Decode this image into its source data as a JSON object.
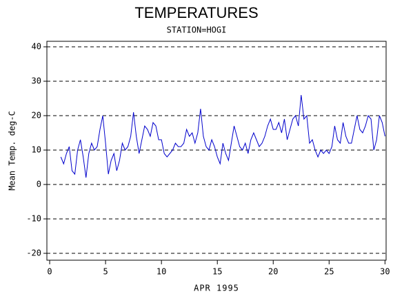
{
  "chart_data": {
    "type": "line",
    "title": "TEMPERATURES",
    "subtitle": "STATION=HOGI",
    "x_label": "APR 1995",
    "y_label": "Mean Temp. deg-C",
    "xlim": [
      -0.25,
      30.1
    ],
    "xticks": [
      0,
      5,
      10,
      15,
      20,
      25,
      30
    ],
    "ylim": [
      -22,
      41.6
    ],
    "yticks": [
      -20,
      -10,
      0,
      10,
      20,
      30,
      40
    ],
    "grid": true,
    "series": [
      {
        "color": "#0000cc",
        "x": [
          1,
          1.25,
          1.5,
          1.75,
          2,
          2.25,
          2.5,
          2.75,
          3,
          3.25,
          3.5,
          3.75,
          4,
          4.25,
          4.5,
          4.75,
          5,
          5.25,
          5.5,
          5.75,
          6,
          6.25,
          6.5,
          6.75,
          7,
          7.25,
          7.5,
          7.75,
          8,
          8.25,
          8.5,
          8.75,
          9,
          9.25,
          9.5,
          9.75,
          10,
          10.25,
          10.5,
          10.75,
          11,
          11.25,
          11.5,
          11.75,
          12,
          12.25,
          12.5,
          12.75,
          13,
          13.25,
          13.5,
          13.75,
          14,
          14.25,
          14.5,
          14.75,
          15,
          15.25,
          15.5,
          15.75,
          16,
          16.25,
          16.5,
          16.75,
          17,
          17.25,
          17.5,
          17.75,
          18,
          18.25,
          18.5,
          18.75,
          19,
          19.25,
          19.5,
          19.75,
          20,
          20.25,
          20.5,
          20.75,
          21,
          21.25,
          21.5,
          21.75,
          22,
          22.25,
          22.5,
          22.75,
          23,
          23.25,
          23.5,
          23.75,
          24,
          24.25,
          24.5,
          24.75,
          25,
          25.25,
          25.5,
          25.75,
          26,
          26.25,
          26.5,
          26.75,
          27,
          27.25,
          27.5,
          27.75,
          28,
          28.25,
          28.5,
          28.75,
          29,
          29.25,
          29.5,
          29.75,
          30
        ],
        "values": [
          8,
          6,
          9,
          11,
          4,
          3,
          10,
          13,
          8,
          2,
          9,
          12,
          10,
          11,
          16,
          20,
          12,
          3,
          7,
          9,
          4,
          7,
          12,
          10,
          11,
          14,
          21,
          14,
          9,
          13,
          17,
          16,
          14,
          18,
          17,
          13,
          13,
          9,
          8,
          9,
          10,
          12,
          11,
          11,
          12,
          16,
          14,
          15,
          12,
          15,
          22,
          14,
          11,
          10,
          13,
          11,
          8,
          6,
          12,
          9,
          7,
          12,
          17,
          14,
          11,
          10,
          12,
          9,
          13,
          15,
          13,
          11,
          12,
          14,
          17,
          19,
          16,
          16,
          18,
          15,
          19,
          13,
          16,
          19,
          20,
          17,
          26,
          19,
          20,
          12,
          13,
          10,
          8,
          10,
          9,
          10,
          9,
          11,
          17,
          13,
          12,
          18,
          14,
          12,
          12,
          16,
          20,
          16,
          15,
          17,
          20,
          19,
          10,
          13,
          20,
          18,
          14
        ]
      }
    ]
  }
}
